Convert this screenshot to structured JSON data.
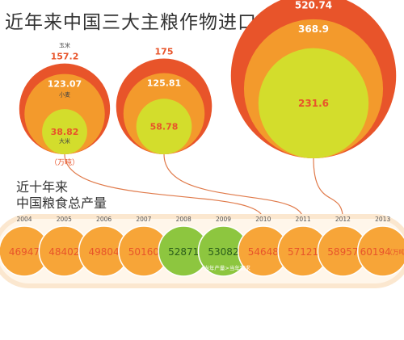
{
  "title": "近年来中国三大主粮作物进口情况",
  "subtitle_line1": "近十年来",
  "subtitle_line2": "中国粮食总产量",
  "colors": {
    "red": "#e8542a",
    "orange": "#f39a2c",
    "green": "#d3dd2c",
    "ring_bg": "#fbe7cf",
    "prod_orange": "#f7a538",
    "prod_green": "#8dc63f",
    "connector": "#e07a4a"
  },
  "chart_data": [
    {
      "type": "bubble",
      "title": "近年来中国三大主粮作物进口情况",
      "unit": "（万吨）",
      "groups": [
        {
          "series": [
            {
              "name": "玉米",
              "value": 157.2
            },
            {
              "name": "小麦",
              "value": 123.07
            },
            {
              "name": "大米",
              "value": 38.82
            }
          ]
        },
        {
          "series": [
            {
              "name": "",
              "value": 175
            },
            {
              "name": "",
              "value": 125.81
            },
            {
              "name": "",
              "value": 58.78
            }
          ]
        },
        {
          "series": [
            {
              "name": "",
              "value": 520.74
            },
            {
              "name": "",
              "value": 368.9
            },
            {
              "name": "",
              "value": 231.6
            }
          ]
        }
      ]
    },
    {
      "type": "bubble",
      "title": "近十年来 中国粮食总产量",
      "unit": "（万吨）",
      "categories": [
        "2004",
        "2005",
        "2006",
        "2007",
        "2008",
        "2009",
        "2010",
        "2011",
        "2012",
        "2013"
      ],
      "values": [
        46947,
        48402,
        49804,
        50160,
        52871,
        53082,
        54648,
        57121,
        58957,
        60194
      ],
      "highlighted": [
        "2008",
        "2009"
      ],
      "annotation": "当年产量>当年需求"
    }
  ]
}
